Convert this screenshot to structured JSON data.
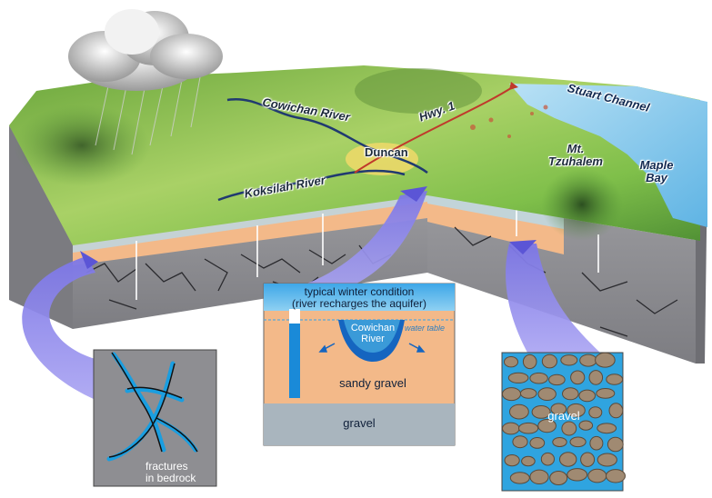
{
  "map_labels": {
    "cowichan_river": "Cowichan River",
    "hwy": "Hwy. 1",
    "stuart_channel": "Stuart Channel",
    "duncan": "Duncan",
    "mt_tzuhalem": "Mt. Tzuhalem",
    "maple_bay": "Maple Bay",
    "koksilah_river": "Koksilah River"
  },
  "callout_center": {
    "title_line1": "typical winter condition",
    "title_line2": "(river recharges the aquifer)",
    "river_label_line1": "Cowichan",
    "river_label_line2": "River",
    "water_table": "water table",
    "sandy_gravel": "sandy gravel",
    "gravel": "gravel"
  },
  "callout_left": {
    "line1": "fractures",
    "line2": "in bedrock"
  },
  "callout_right": {
    "label": "gravel"
  },
  "colors": {
    "sky_blue": "#4fa8e0",
    "aquifer_tan": "#f3b989",
    "bedrock_grey": "#8e8e92",
    "gravel_grey": "#a9b5be",
    "callout_purple": "#8a84e8",
    "sea": "#7fc6ea",
    "land_green": "#7fbf4a"
  }
}
